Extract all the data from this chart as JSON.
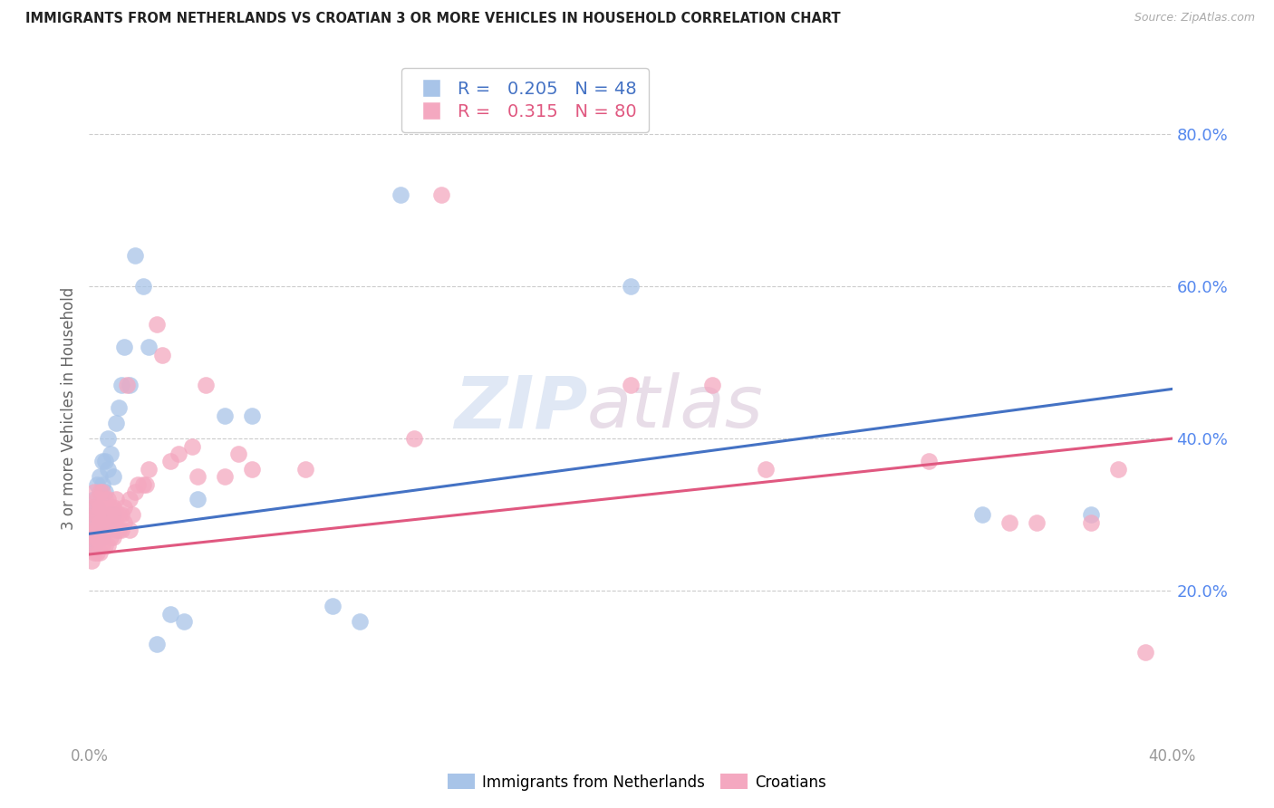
{
  "title": "IMMIGRANTS FROM NETHERLANDS VS CROATIAN 3 OR MORE VEHICLES IN HOUSEHOLD CORRELATION CHART",
  "source": "Source: ZipAtlas.com",
  "ylabel": "3 or more Vehicles in Household",
  "xlim": [
    0.0,
    0.4
  ],
  "ylim": [
    0.0,
    0.88
  ],
  "xtick_labels": [
    "0.0%",
    "",
    "",
    "",
    "40.0%"
  ],
  "xtick_values": [
    0.0,
    0.1,
    0.2,
    0.3,
    0.4
  ],
  "ytick_labels": [
    "20.0%",
    "40.0%",
    "60.0%",
    "80.0%"
  ],
  "ytick_values": [
    0.2,
    0.4,
    0.6,
    0.8
  ],
  "blue_R": 0.205,
  "blue_N": 48,
  "pink_R": 0.315,
  "pink_N": 80,
  "blue_color": "#a8c4e8",
  "pink_color": "#f4a8c0",
  "blue_line_color": "#4472c4",
  "pink_line_color": "#e05880",
  "watermark_zip": "ZIP",
  "watermark_atlas": "atlas",
  "blue_x": [
    0.001,
    0.001,
    0.001,
    0.002,
    0.002,
    0.002,
    0.002,
    0.003,
    0.003,
    0.003,
    0.003,
    0.004,
    0.004,
    0.004,
    0.005,
    0.005,
    0.005,
    0.005,
    0.006,
    0.006,
    0.006,
    0.007,
    0.007,
    0.007,
    0.008,
    0.008,
    0.009,
    0.009,
    0.01,
    0.011,
    0.012,
    0.013,
    0.015,
    0.017,
    0.02,
    0.022,
    0.025,
    0.03,
    0.035,
    0.04,
    0.05,
    0.06,
    0.09,
    0.1,
    0.115,
    0.2,
    0.33,
    0.37
  ],
  "blue_y": [
    0.26,
    0.28,
    0.3,
    0.26,
    0.28,
    0.3,
    0.32,
    0.27,
    0.29,
    0.31,
    0.34,
    0.27,
    0.3,
    0.35,
    0.27,
    0.3,
    0.34,
    0.37,
    0.28,
    0.33,
    0.37,
    0.29,
    0.36,
    0.4,
    0.3,
    0.38,
    0.3,
    0.35,
    0.42,
    0.44,
    0.47,
    0.52,
    0.47,
    0.64,
    0.6,
    0.52,
    0.13,
    0.17,
    0.16,
    0.32,
    0.43,
    0.43,
    0.18,
    0.16,
    0.72,
    0.6,
    0.3,
    0.3
  ],
  "pink_x": [
    0.001,
    0.001,
    0.001,
    0.001,
    0.001,
    0.002,
    0.002,
    0.002,
    0.002,
    0.002,
    0.002,
    0.003,
    0.003,
    0.003,
    0.003,
    0.003,
    0.004,
    0.004,
    0.004,
    0.004,
    0.004,
    0.005,
    0.005,
    0.005,
    0.005,
    0.005,
    0.006,
    0.006,
    0.006,
    0.006,
    0.007,
    0.007,
    0.007,
    0.007,
    0.008,
    0.008,
    0.008,
    0.009,
    0.009,
    0.009,
    0.01,
    0.01,
    0.01,
    0.011,
    0.011,
    0.012,
    0.012,
    0.013,
    0.013,
    0.014,
    0.015,
    0.015,
    0.016,
    0.017,
    0.018,
    0.02,
    0.021,
    0.022,
    0.025,
    0.027,
    0.03,
    0.033,
    0.038,
    0.04,
    0.043,
    0.05,
    0.055,
    0.06,
    0.08,
    0.12,
    0.13,
    0.2,
    0.23,
    0.25,
    0.31,
    0.34,
    0.35,
    0.37,
    0.38,
    0.39
  ],
  "pink_y": [
    0.24,
    0.26,
    0.27,
    0.29,
    0.31,
    0.25,
    0.27,
    0.28,
    0.29,
    0.31,
    0.33,
    0.25,
    0.27,
    0.28,
    0.3,
    0.32,
    0.25,
    0.27,
    0.29,
    0.31,
    0.33,
    0.26,
    0.27,
    0.29,
    0.31,
    0.33,
    0.26,
    0.28,
    0.3,
    0.32,
    0.26,
    0.28,
    0.3,
    0.32,
    0.27,
    0.29,
    0.31,
    0.27,
    0.29,
    0.31,
    0.28,
    0.3,
    0.32,
    0.28,
    0.3,
    0.28,
    0.3,
    0.29,
    0.31,
    0.47,
    0.28,
    0.32,
    0.3,
    0.33,
    0.34,
    0.34,
    0.34,
    0.36,
    0.55,
    0.51,
    0.37,
    0.38,
    0.39,
    0.35,
    0.47,
    0.35,
    0.38,
    0.36,
    0.36,
    0.4,
    0.72,
    0.47,
    0.47,
    0.36,
    0.37,
    0.29,
    0.29,
    0.29,
    0.36,
    0.12
  ]
}
